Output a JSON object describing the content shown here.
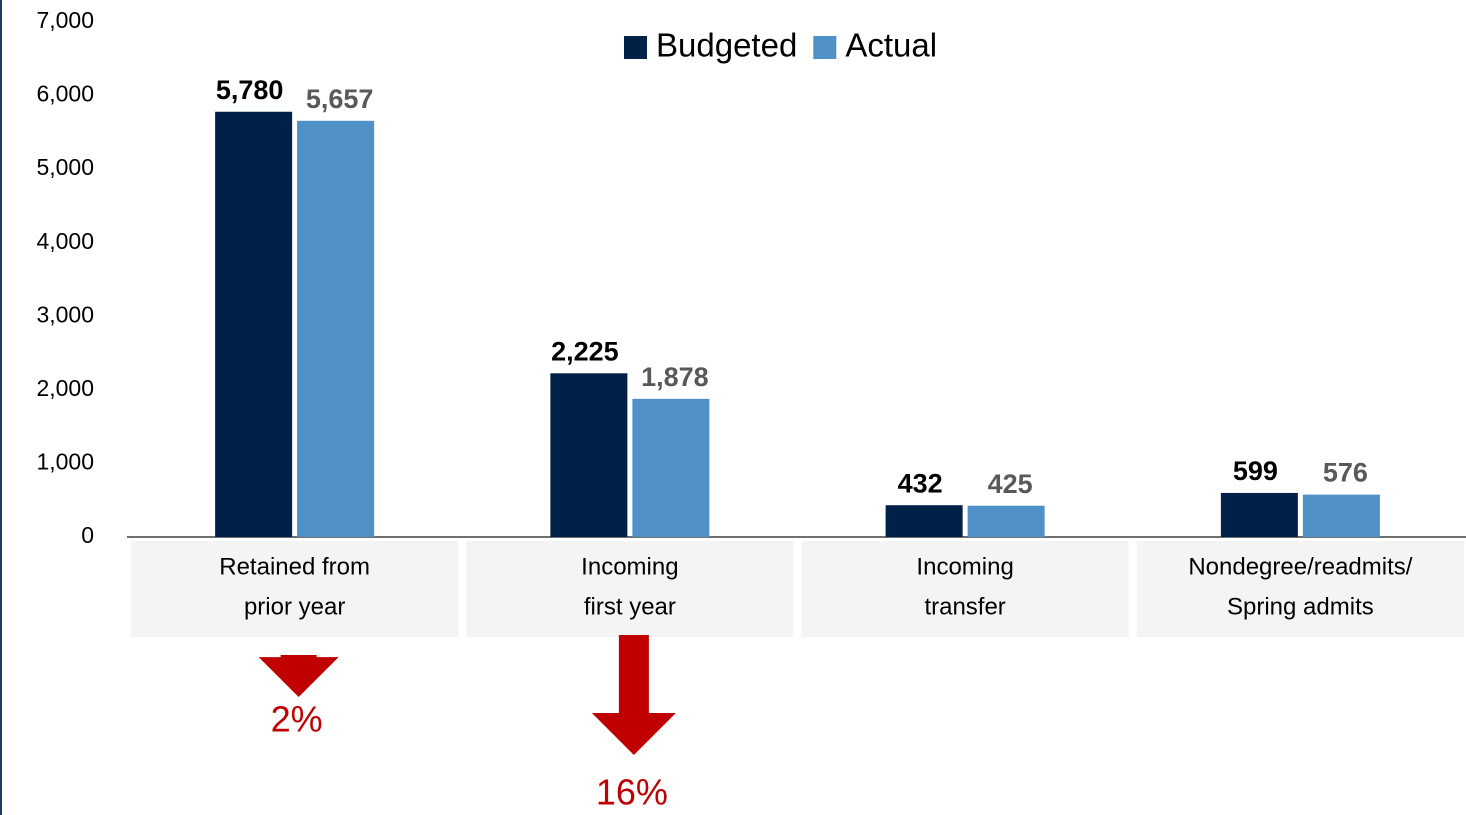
{
  "chart_data": {
    "type": "bar",
    "categories": [
      [
        "Retained from",
        "prior year"
      ],
      [
        "Incoming",
        "first year"
      ],
      [
        "Incoming",
        "transfer"
      ],
      [
        "Nondegree/readmits/",
        "Spring admits"
      ]
    ],
    "series": [
      {
        "name": "Budgeted",
        "color": "#002147",
        "values": [
          5780,
          2225,
          432,
          599
        ],
        "value_labels": [
          "5,780",
          "2,225",
          "432",
          "599"
        ]
      },
      {
        "name": "Actual",
        "color": "#4f90c6",
        "values": [
          5657,
          1878,
          425,
          576
        ],
        "value_labels": [
          "5,657",
          "1,878",
          "425",
          "576"
        ]
      }
    ],
    "ylim": [
      0,
      7000
    ],
    "yticks": [
      0,
      {
        "value": 1000,
        "label": "1,000"
      },
      {
        "value": 2000,
        "label": "2,000"
      },
      {
        "value": 3000,
        "label": "3,000"
      },
      {
        "value": 4000,
        "label": "4,000"
      },
      {
        "value": 5000,
        "label": "5,000"
      },
      {
        "value": 6000,
        "label": "6,000"
      },
      {
        "value": 7000,
        "label": "7,000"
      }
    ],
    "legend": "top",
    "annotations": [
      "2%",
      "16%"
    ]
  }
}
